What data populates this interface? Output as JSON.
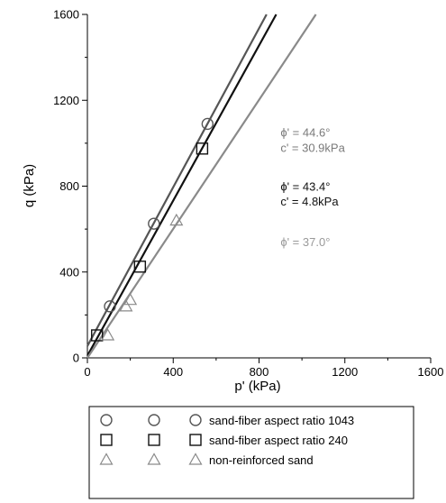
{
  "chart_data": {
    "type": "scatter",
    "title": "",
    "xlabel": "p' (kPa)",
    "ylabel": "q (kPa)",
    "xlim": [
      0,
      1600
    ],
    "ylim": [
      0,
      1600
    ],
    "x_ticks": [
      0,
      400,
      800,
      1200,
      1600
    ],
    "y_ticks": [
      0,
      400,
      800,
      1200,
      1600
    ],
    "grid": false,
    "legend_position": "bottom",
    "series": [
      {
        "name": "sand-fiber aspect ratio 1043",
        "marker": "circle",
        "color": "#555555",
        "x": [
          105,
          310,
          560
        ],
        "y": [
          240,
          625,
          1090
        ],
        "fit": {
          "x": [
            0,
            835
          ],
          "y": [
            55,
            1600
          ]
        }
      },
      {
        "name": "sand-fiber aspect ratio 240",
        "marker": "square",
        "color": "#111111",
        "x": [
          45,
          245,
          535
        ],
        "y": [
          105,
          425,
          975
        ],
        "fit": {
          "x": [
            0,
            880
          ],
          "y": [
            10,
            1600
          ]
        }
      },
      {
        "name": "non-reinforced sand",
        "marker": "triangle",
        "color": "#8a8a8a",
        "x": [
          95,
          180,
          200,
          415
        ],
        "y": [
          105,
          240,
          270,
          640
        ],
        "fit": {
          "x": [
            0,
            1065
          ],
          "y": [
            0,
            1600
          ]
        }
      }
    ],
    "annotations": [
      {
        "text": "ϕ' = 44.6°",
        "color": "#7a7a7a",
        "x": 900,
        "y": 1030
      },
      {
        "text": "c' = 30.9kPa",
        "color": "#7a7a7a",
        "x": 900,
        "y": 960
      },
      {
        "text": "ϕ' = 43.4°",
        "color": "#111111",
        "x": 900,
        "y": 780
      },
      {
        "text": "c' = 4.8kPa",
        "color": "#111111",
        "x": 900,
        "y": 710
      },
      {
        "text": "ϕ' = 37.0°",
        "color": "#999999",
        "x": 900,
        "y": 520
      }
    ]
  }
}
